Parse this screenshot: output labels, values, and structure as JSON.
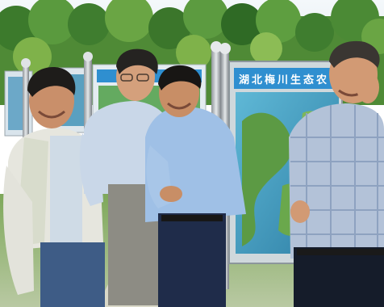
{
  "photo": {
    "sign_text": "湖北梅川生态农",
    "colors": {
      "sky": "#eaf3f8",
      "foliage": "#3f7d2f",
      "foliage_light": "#7fb24a",
      "sign_banner": "#2f8fd0",
      "sign_water": "#4aa8c8"
    }
  }
}
